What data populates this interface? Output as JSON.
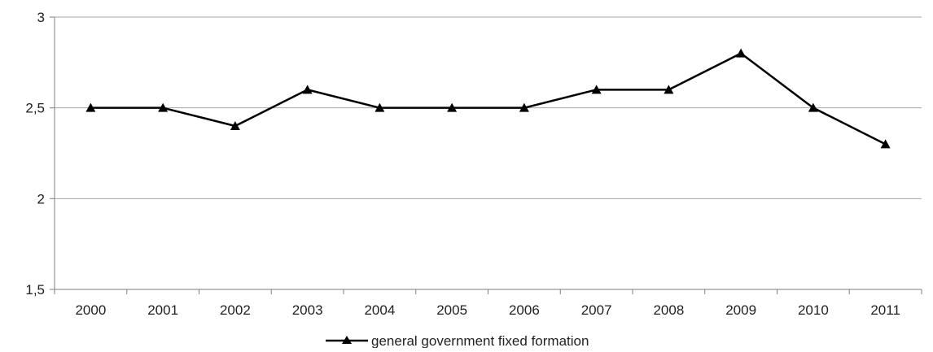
{
  "chart_data": {
    "type": "line",
    "title": "",
    "xlabel": "",
    "ylabel": "",
    "categories": [
      "2000",
      "2001",
      "2002",
      "2003",
      "2004",
      "2005",
      "2006",
      "2007",
      "2008",
      "2009",
      "2010",
      "2011"
    ],
    "series": [
      {
        "name": "general government fixed formation",
        "values": [
          2.5,
          2.5,
          2.4,
          2.6,
          2.5,
          2.5,
          2.5,
          2.6,
          2.6,
          2.8,
          2.5,
          2.3
        ],
        "color": "#000000",
        "marker": "triangle"
      }
    ],
    "ylim": [
      1.5,
      3
    ],
    "yticks": [
      1.5,
      2,
      2.5,
      3
    ],
    "ytick_labels": [
      "1,5",
      "2",
      "2,5",
      "3"
    ],
    "grid": true,
    "legend_position": "bottom-center"
  }
}
